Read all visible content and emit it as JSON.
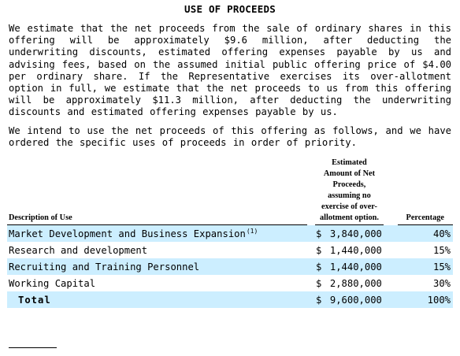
{
  "title": "USE OF PROCEEDS",
  "paragraph1": "We estimate that the net proceeds from the sale of ordinary shares in this offering will be approximately $9.6 million, after deducting the underwriting discounts, estimated offering expenses payable by us and advising fees, based on the assumed initial public offering price of $4.00 per ordinary share. If the Representative exercises its over-allotment option in full, we estimate that the net proceeds to us from this offering will be approximately $11.3 million, after deducting the underwriting discounts and estimated offering expenses payable by us.",
  "paragraph2": "We intend to use the net proceeds of this offering as follows, and we have ordered the specific uses of proceeds in order of priority.",
  "table": {
    "headers": {
      "description": "Description of Use",
      "amount": "Estimated Amount of Net Proceeds, assuming no exercise of over-allotment option.",
      "percentage": "Percentage"
    },
    "rows": [
      {
        "description": "Market Development and Business Expansion",
        "footnote": "(1)",
        "dollar": "$",
        "amount": "3,840,000",
        "percentage": "40%"
      },
      {
        "description": "Research and development",
        "footnote": "",
        "dollar": "$",
        "amount": "1,440,000",
        "percentage": "15%"
      },
      {
        "description": "Recruiting and Training Personnel",
        "footnote": "",
        "dollar": "$",
        "amount": "1,440,000",
        "percentage": "15%"
      },
      {
        "description": "Working Capital",
        "footnote": "",
        "dollar": "$",
        "amount": "2,880,000",
        "percentage": "30%"
      }
    ],
    "total": {
      "label": "Total",
      "dollar": "$",
      "amount": "9,600,000",
      "percentage": "100%"
    }
  },
  "colors": {
    "row_shade": "#cceeff",
    "text": "#000000",
    "background": "#ffffff"
  }
}
